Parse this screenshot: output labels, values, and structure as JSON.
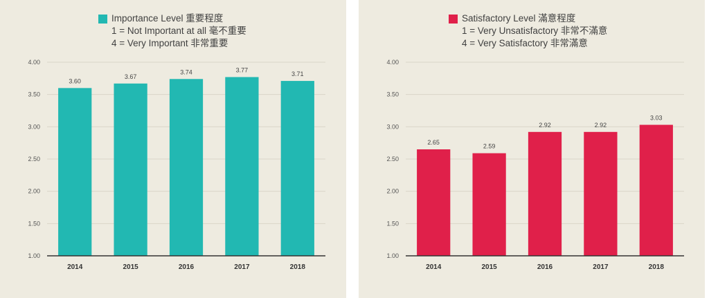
{
  "chart_data": [
    {
      "type": "bar",
      "title": "Importance Level 重要程度",
      "subtitle_lines": [
        "1 = Not Important at all 毫不重要",
        "4 = Very Important 非常重要"
      ],
      "categories": [
        "2014",
        "2015",
        "2016",
        "2017",
        "2018"
      ],
      "values": [
        3.6,
        3.67,
        3.74,
        3.77,
        3.71
      ],
      "value_labels": [
        "3.60",
        "3.67",
        "3.74",
        "3.77",
        "3.71"
      ],
      "color": "#22b8b2",
      "ylim": [
        1.0,
        4.0
      ],
      "yticks": [
        "1.00",
        "1.50",
        "2.00",
        "2.50",
        "3.00",
        "3.50",
        "4.00"
      ],
      "ytick_values": [
        1.0,
        1.5,
        2.0,
        2.5,
        3.0,
        3.5,
        4.0
      ],
      "grid": true,
      "legend": "top-center"
    },
    {
      "type": "bar",
      "title": "Satisfactory Level 滿意程度",
      "subtitle_lines": [
        "1 = Very Unsatisfactory 非常不滿意",
        "4 = Very Satisfactory 非常滿意"
      ],
      "categories": [
        "2014",
        "2015",
        "2016",
        "2017",
        "2018"
      ],
      "values": [
        2.65,
        2.59,
        2.92,
        2.92,
        3.03
      ],
      "value_labels": [
        "2.65",
        "2.59",
        "2.92",
        "2.92",
        "3.03"
      ],
      "color": "#e0204a",
      "ylim": [
        1.0,
        4.0
      ],
      "yticks": [
        "1.00",
        "1.50",
        "2.00",
        "2.50",
        "3.00",
        "3.50",
        "4.00"
      ],
      "ytick_values": [
        1.0,
        1.5,
        2.0,
        2.5,
        3.0,
        3.5,
        4.0
      ],
      "grid": true,
      "legend": "top-center"
    }
  ]
}
